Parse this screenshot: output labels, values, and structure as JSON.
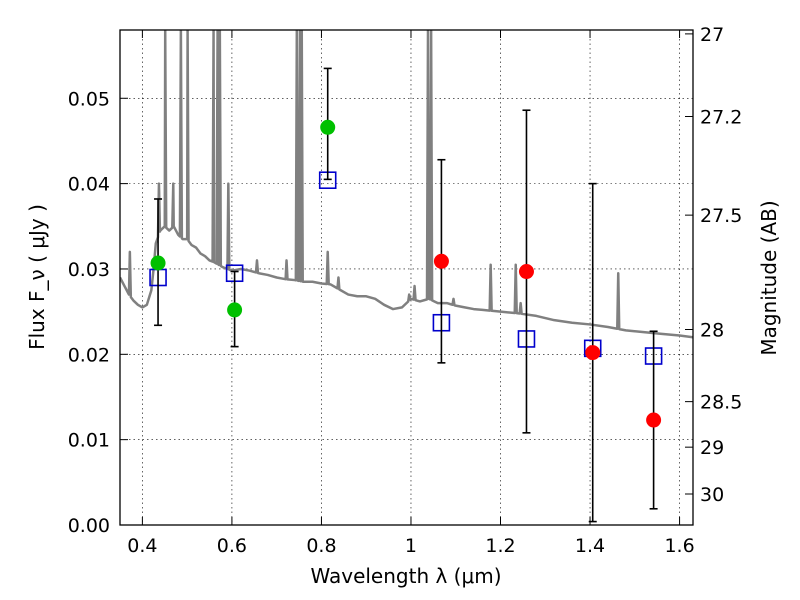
{
  "chart_data": {
    "type": "scatter",
    "title": "",
    "xlabel": "Wavelength  λ (μm)",
    "ylabel": "Flux  F_ν  ( μJy )",
    "ylabel_right": "Magnitude (AB)",
    "xlim": [
      0.35,
      1.63
    ],
    "ylim": [
      0.0,
      0.058
    ],
    "grid": true,
    "x_ticks": [
      0.4,
      0.6,
      0.8,
      1.0,
      1.2,
      1.4,
      1.6
    ],
    "x_tick_labels": [
      "0.4",
      "0.6",
      "0.8",
      "1",
      "1.2",
      "1.4",
      "1.6"
    ],
    "y_ticks": [
      0.0,
      0.01,
      0.02,
      0.03,
      0.04,
      0.05
    ],
    "y_tick_labels": [
      "0.00",
      "0.01",
      "0.02",
      "0.03",
      "0.04",
      "0.05"
    ],
    "right_ticks": [
      {
        "mag": 27,
        "label": "27"
      },
      {
        "mag": 27.2,
        "label": "27.2"
      },
      {
        "mag": 27.5,
        "label": "27.5"
      },
      {
        "mag": 28,
        "label": "28"
      },
      {
        "mag": 28.5,
        "label": "28.5"
      },
      {
        "mag": 29,
        "label": "29"
      },
      {
        "mag": 30,
        "label": "30"
      }
    ],
    "colors": {
      "spectrum": "#808080",
      "observed_optical": "#00c000",
      "observed_nir": "#ff0000",
      "model": "#0000cc",
      "errorbar": "#000000"
    },
    "observed": [
      {
        "x": 0.435,
        "y": 0.0307,
        "yerr_low": 0.0073,
        "yerr_high": 0.0075,
        "band": "optical"
      },
      {
        "x": 0.606,
        "y": 0.0252,
        "yerr_low": 0.0043,
        "yerr_high": 0.0045,
        "band": "optical"
      },
      {
        "x": 0.814,
        "y": 0.0466,
        "yerr_low": 0.0061,
        "yerr_high": 0.0069,
        "band": "optical"
      },
      {
        "x": 1.068,
        "y": 0.0309,
        "yerr_low": 0.0119,
        "yerr_high": 0.0119,
        "band": "nir"
      },
      {
        "x": 1.258,
        "y": 0.0297,
        "yerr_low": 0.0189,
        "yerr_high": 0.0189,
        "band": "nir"
      },
      {
        "x": 1.406,
        "y": 0.0202,
        "yerr_low": 0.0198,
        "yerr_high": 0.0198,
        "band": "nir"
      },
      {
        "x": 1.542,
        "y": 0.0123,
        "yerr_low": 0.0104,
        "yerr_high": 0.0104,
        "band": "nir"
      }
    ],
    "model_photometry": [
      {
        "x": 0.435,
        "y": 0.029
      },
      {
        "x": 0.606,
        "y": 0.0295
      },
      {
        "x": 0.814,
        "y": 0.0404
      },
      {
        "x": 1.068,
        "y": 0.0237
      },
      {
        "x": 1.258,
        "y": 0.0218
      },
      {
        "x": 1.406,
        "y": 0.0207
      },
      {
        "x": 1.542,
        "y": 0.0198
      }
    ],
    "spectrum": {
      "continuum": [
        [
          0.35,
          0.029
        ],
        [
          0.36,
          0.028
        ],
        [
          0.37,
          0.027
        ],
        [
          0.38,
          0.0263
        ],
        [
          0.39,
          0.0258
        ],
        [
          0.4,
          0.0255
        ],
        [
          0.41,
          0.0258
        ],
        [
          0.42,
          0.0275
        ],
        [
          0.425,
          0.03
        ],
        [
          0.43,
          0.033
        ],
        [
          0.44,
          0.0345
        ],
        [
          0.45,
          0.035
        ],
        [
          0.46,
          0.0345
        ],
        [
          0.47,
          0.035
        ],
        [
          0.48,
          0.034
        ],
        [
          0.49,
          0.0335
        ],
        [
          0.5,
          0.0335
        ],
        [
          0.51,
          0.0328
        ],
        [
          0.52,
          0.0325
        ],
        [
          0.53,
          0.0318
        ],
        [
          0.54,
          0.0315
        ],
        [
          0.55,
          0.031
        ],
        [
          0.56,
          0.0308
        ],
        [
          0.57,
          0.0305
        ],
        [
          0.58,
          0.0302
        ],
        [
          0.59,
          0.03
        ],
        [
          0.6,
          0.0298
        ],
        [
          0.62,
          0.03
        ],
        [
          0.64,
          0.0298
        ],
        [
          0.66,
          0.0295
        ],
        [
          0.68,
          0.0293
        ],
        [
          0.7,
          0.029
        ],
        [
          0.72,
          0.0288
        ],
        [
          0.74,
          0.0287
        ],
        [
          0.76,
          0.0285
        ],
        [
          0.78,
          0.0285
        ],
        [
          0.8,
          0.0283
        ],
        [
          0.82,
          0.0282
        ],
        [
          0.84,
          0.0276
        ],
        [
          0.86,
          0.027
        ],
        [
          0.88,
          0.0268
        ],
        [
          0.9,
          0.0268
        ],
        [
          0.92,
          0.0265
        ],
        [
          0.94,
          0.0258
        ],
        [
          0.96,
          0.0253
        ],
        [
          0.98,
          0.0255
        ],
        [
          1.0,
          0.0265
        ],
        [
          1.02,
          0.0262
        ],
        [
          1.04,
          0.0265
        ],
        [
          1.06,
          0.026
        ],
        [
          1.08,
          0.026
        ],
        [
          1.1,
          0.0257
        ],
        [
          1.12,
          0.0255
        ],
        [
          1.14,
          0.0253
        ],
        [
          1.16,
          0.0252
        ],
        [
          1.2,
          0.025
        ],
        [
          1.24,
          0.0248
        ],
        [
          1.28,
          0.0245
        ],
        [
          1.32,
          0.024
        ],
        [
          1.36,
          0.0237
        ],
        [
          1.4,
          0.0235
        ],
        [
          1.44,
          0.0232
        ],
        [
          1.48,
          0.0228
        ],
        [
          1.52,
          0.0226
        ],
        [
          1.56,
          0.0224
        ],
        [
          1.6,
          0.0222
        ],
        [
          1.63,
          0.022
        ]
      ],
      "emission_lines": [
        {
          "x": 0.372,
          "peak": 0.032
        },
        {
          "x": 0.437,
          "peak": 0.04
        },
        {
          "x": 0.451,
          "peak": 0.058
        },
        {
          "x": 0.469,
          "peak": 0.04
        },
        {
          "x": 0.486,
          "peak": 0.058
        },
        {
          "x": 0.501,
          "peak": 0.058
        },
        {
          "x": 0.559,
          "peak": 0.058
        },
        {
          "x": 0.568,
          "peak": 0.058
        },
        {
          "x": 0.573,
          "peak": 0.058
        },
        {
          "x": 0.592,
          "peak": 0.04
        },
        {
          "x": 0.656,
          "peak": 0.031
        },
        {
          "x": 0.722,
          "peak": 0.031
        },
        {
          "x": 0.745,
          "peak": 0.058
        },
        {
          "x": 0.752,
          "peak": 0.058
        },
        {
          "x": 0.756,
          "peak": 0.058
        },
        {
          "x": 0.814,
          "peak": 0.032
        },
        {
          "x": 0.838,
          "peak": 0.029
        },
        {
          "x": 0.996,
          "peak": 0.027
        },
        {
          "x": 1.008,
          "peak": 0.028
        },
        {
          "x": 1.038,
          "peak": 0.058
        },
        {
          "x": 1.045,
          "peak": 0.058
        },
        {
          "x": 1.095,
          "peak": 0.0265
        },
        {
          "x": 1.178,
          "peak": 0.0305
        },
        {
          "x": 1.234,
          "peak": 0.0305
        },
        {
          "x": 1.245,
          "peak": 0.026
        },
        {
          "x": 1.463,
          "peak": 0.0295
        }
      ]
    }
  }
}
